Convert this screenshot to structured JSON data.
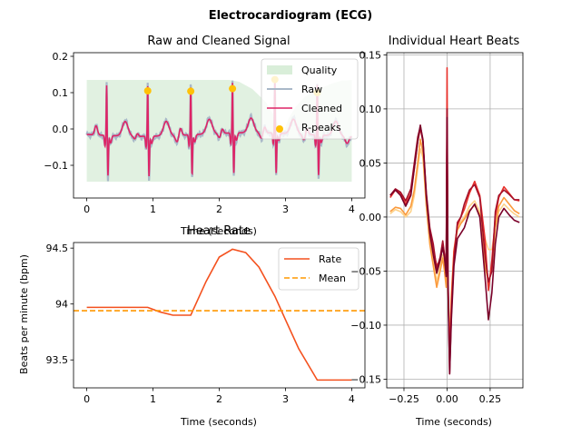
{
  "figure": {
    "title": "Electrocardiogram (ECG)"
  },
  "chart_data": [
    {
      "type": "line",
      "title": "Raw and Cleaned Signal",
      "xlabel": "Time (seconds)",
      "ylabel": "",
      "xlim": [
        -0.2,
        4.2
      ],
      "ylim": [
        -0.19,
        0.21
      ],
      "xticks": [
        0,
        1,
        2,
        3,
        4
      ],
      "yticks": [
        -0.1,
        0.0,
        0.1,
        0.2
      ],
      "ytick_labels": [
        "−0.1",
        "0.0",
        "0.1",
        "0.2"
      ],
      "legend_position": "top-right",
      "series": [
        {
          "name": "Quality",
          "kind": "area",
          "color": "#d9eed9",
          "x": [
            0,
            2.15,
            2.3,
            2.5,
            2.7,
            2.85,
            2.95,
            3.05,
            3.15,
            3.3,
            3.5,
            3.7,
            3.85,
            4.0
          ],
          "values": [
            0.135,
            0.135,
            0.13,
            0.11,
            0.075,
            0.03,
            -0.02,
            0.03,
            0.06,
            0.09,
            0.11,
            0.125,
            0.133,
            0.135
          ],
          "baseline": -0.145
        },
        {
          "name": "Raw",
          "kind": "line",
          "color": "#a9b8c8"
        },
        {
          "name": "Cleaned",
          "kind": "line",
          "color": "#de2466"
        },
        {
          "name": "R-peaks",
          "kind": "scatter",
          "color": "#ffc107",
          "x": [
            0.92,
            1.57,
            2.2,
            2.84,
            3.48
          ],
          "values": [
            0.105,
            0.104,
            0.111,
            0.136,
            0.1
          ]
        }
      ],
      "beats": [
        0.3,
        0.92,
        1.57,
        2.2,
        2.84,
        3.48
      ]
    },
    {
      "type": "line",
      "title": "Heart Rate",
      "xlabel": "Time (seconds)",
      "ylabel": "Beats per minute (bpm)",
      "xlim": [
        -0.2,
        4.2
      ],
      "ylim": [
        93.25,
        94.55
      ],
      "xticks": [
        0,
        1,
        2,
        3,
        4
      ],
      "yticks": [
        93.5,
        94.0,
        94.5
      ],
      "legend_position": "top-right",
      "series": [
        {
          "name": "Rate",
          "color": "#f4511e",
          "x": [
            0,
            0.3,
            0.6,
            0.92,
            1.1,
            1.3,
            1.57,
            1.8,
            2.0,
            2.2,
            2.4,
            2.6,
            2.84,
            3.0,
            3.2,
            3.48,
            3.7,
            4.0
          ],
          "values": [
            93.97,
            93.97,
            93.97,
            93.97,
            93.93,
            93.9,
            93.9,
            94.2,
            94.42,
            94.49,
            94.46,
            94.33,
            94.07,
            93.86,
            93.6,
            93.32,
            93.32,
            93.32
          ]
        },
        {
          "name": "Mean",
          "color": "#ff9800",
          "dashed": true,
          "value": 93.94
        }
      ]
    },
    {
      "type": "line",
      "title": "Individual Heart Beats",
      "xlabel": "Time (seconds)",
      "ylabel": "",
      "xlim": [
        -0.35,
        0.44
      ],
      "ylim": [
        -0.158,
        0.152
      ],
      "xticks": [
        -0.25,
        0.0,
        0.25
      ],
      "xtick_labels": [
        "−0.25",
        "0.00",
        "0.25"
      ],
      "yticks": [
        -0.15,
        -0.1,
        -0.05,
        0.0,
        0.05,
        0.1,
        0.15
      ],
      "ytick_labels": [
        "−0.15",
        "−0.10",
        "−0.05",
        "0.00",
        "0.05",
        "0.10",
        "0.15"
      ],
      "grid": true,
      "x": [
        -0.33,
        -0.3,
        -0.27,
        -0.24,
        -0.21,
        -0.19,
        -0.17,
        -0.155,
        -0.14,
        -0.12,
        -0.1,
        -0.08,
        -0.06,
        -0.04,
        -0.025,
        -0.015,
        -0.005,
        0.0,
        0.005,
        0.015,
        0.025,
        0.04,
        0.06,
        0.08,
        0.1,
        0.13,
        0.16,
        0.19,
        0.22,
        0.24,
        0.26,
        0.28,
        0.3,
        0.33,
        0.36,
        0.39,
        0.42
      ],
      "series": [
        {
          "color": "#fdd28a",
          "values": [
            0.003,
            0.007,
            0.005,
            0.0,
            0.005,
            0.02,
            0.045,
            0.063,
            0.055,
            0.01,
            -0.02,
            -0.04,
            -0.06,
            -0.045,
            -0.035,
            -0.045,
            -0.06,
            0.08,
            -0.06,
            -0.115,
            -0.07,
            -0.03,
            -0.01,
            -0.004,
            0.0,
            0.01,
            0.015,
            0.005,
            -0.02,
            -0.03,
            -0.03,
            -0.01,
            0.005,
            0.012,
            0.007,
            0.003,
            0.0
          ]
        },
        {
          "color": "#fb9a3c",
          "values": [
            0.005,
            0.009,
            0.008,
            0.002,
            0.01,
            0.025,
            0.05,
            0.072,
            0.06,
            0.01,
            -0.025,
            -0.045,
            -0.065,
            -0.05,
            -0.038,
            -0.05,
            -0.065,
            0.09,
            -0.065,
            -0.125,
            -0.075,
            -0.032,
            -0.012,
            -0.006,
            -0.002,
            0.006,
            0.011,
            0.002,
            -0.045,
            -0.06,
            -0.05,
            -0.01,
            0.01,
            0.018,
            0.012,
            0.006,
            0.003
          ]
        },
        {
          "color": "#e8312b",
          "values": [
            0.018,
            0.025,
            0.022,
            0.012,
            0.022,
            0.045,
            0.07,
            0.082,
            0.07,
            0.02,
            -0.012,
            -0.03,
            -0.045,
            -0.04,
            -0.025,
            -0.035,
            -0.05,
            0.138,
            -0.05,
            -0.13,
            -0.08,
            -0.032,
            -0.008,
            0.0,
            0.007,
            0.022,
            0.033,
            0.02,
            -0.02,
            -0.068,
            -0.04,
            0.0,
            0.018,
            0.028,
            0.022,
            0.016,
            0.015
          ]
        },
        {
          "color": "#a3112b",
          "values": [
            0.02,
            0.026,
            0.023,
            0.015,
            0.026,
            0.05,
            0.074,
            0.084,
            0.072,
            0.022,
            -0.01,
            -0.025,
            -0.048,
            -0.037,
            -0.022,
            -0.035,
            -0.052,
            0.1,
            -0.055,
            -0.145,
            -0.09,
            -0.04,
            -0.005,
            0.0,
            0.012,
            0.025,
            0.03,
            0.018,
            -0.035,
            -0.06,
            -0.05,
            0.005,
            0.02,
            0.025,
            0.021,
            0.016,
            0.016
          ]
        },
        {
          "color": "#7a0029",
          "values": [
            0.02,
            0.025,
            0.02,
            0.01,
            0.02,
            0.045,
            0.07,
            0.085,
            0.07,
            0.018,
            -0.015,
            -0.035,
            -0.052,
            -0.04,
            -0.028,
            -0.038,
            -0.055,
            0.092,
            -0.06,
            -0.145,
            -0.095,
            -0.045,
            -0.02,
            -0.015,
            -0.01,
            0.005,
            0.012,
            0.0,
            -0.055,
            -0.095,
            -0.07,
            -0.025,
            0.0,
            0.008,
            0.002,
            -0.003,
            -0.005
          ]
        }
      ]
    }
  ]
}
